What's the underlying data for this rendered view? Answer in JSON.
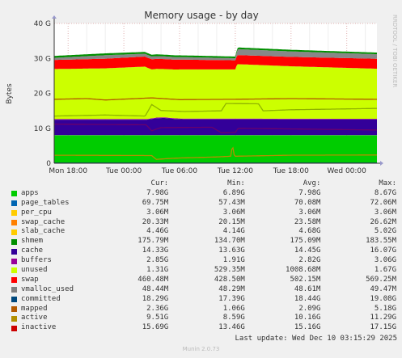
{
  "chart_data": {
    "type": "area",
    "title": "Memory usage - by day",
    "ylabel": "Bytes",
    "ylim": [
      0,
      40
    ],
    "yticks": [
      "0",
      "10 G",
      "20 G",
      "30 G",
      "40 G"
    ],
    "x_ticks": [
      "Mon 18:00",
      "Tue 00:00",
      "Tue 06:00",
      "Tue 12:00",
      "Tue 18:00",
      "Wed 00:00"
    ],
    "x_tick_hours": [
      0,
      6,
      12,
      18,
      24,
      30
    ],
    "x_range_hours": [
      -1.5,
      33.25
    ],
    "grid": true,
    "legend_position": "bottom",
    "stack_order": [
      "apps",
      "page_tables",
      "per_cpu",
      "swap_cache",
      "slab_cache",
      "shmem",
      "cache",
      "buffers",
      "unused",
      "swap"
    ],
    "line_series": [
      "vmalloc_used",
      "committed",
      "mapped",
      "active",
      "inactive"
    ],
    "series_profiles": {
      "apps": [
        [
          -1.5,
          7.98
        ],
        [
          33.25,
          7.98
        ]
      ],
      "page_tables": [
        [
          -1.5,
          0.07
        ],
        [
          33.25,
          0.07
        ]
      ],
      "per_cpu": [
        [
          -1.5,
          0.003
        ],
        [
          33.25,
          0.003
        ]
      ],
      "swap_cache": [
        [
          -1.5,
          0.02
        ],
        [
          33.25,
          0.02
        ]
      ],
      "slab_cache": [
        [
          -1.5,
          4.4
        ],
        [
          8.5,
          4.4
        ],
        [
          9.5,
          4.8
        ],
        [
          10.3,
          4.9
        ],
        [
          11.5,
          4.6
        ],
        [
          12.5,
          4.5
        ],
        [
          20.5,
          4.5
        ],
        [
          33.25,
          4.46
        ]
      ],
      "shmem": [
        [
          -1.5,
          0.18
        ],
        [
          33.25,
          0.18
        ]
      ],
      "cache": [
        [
          -1.5,
          14.3
        ],
        [
          4.0,
          14.5
        ],
        [
          8.3,
          15.0
        ],
        [
          9.0,
          14.0
        ],
        [
          10.3,
          13.8
        ],
        [
          12.5,
          14.1
        ],
        [
          18.0,
          14.1
        ],
        [
          18.2,
          15.6
        ],
        [
          24.0,
          15.0
        ],
        [
          33.25,
          14.33
        ]
      ],
      "buffers": [
        [
          -1.5,
          2.6
        ],
        [
          9.0,
          2.9
        ],
        [
          18.0,
          2.6
        ],
        [
          18.3,
          2.6
        ],
        [
          33.25,
          2.85
        ]
      ],
      "unused": [
        [
          -1.5,
          0.6
        ],
        [
          4.0,
          1.0
        ],
        [
          8.3,
          0.8
        ],
        [
          18.0,
          0.6
        ],
        [
          18.3,
          1.7
        ],
        [
          33.25,
          1.31
        ]
      ],
      "swap": [
        [
          -1.5,
          0.55
        ],
        [
          18.0,
          0.48
        ],
        [
          33.25,
          0.46
        ]
      ],
      "vmalloc_used": [
        [
          -1.5,
          0.048
        ],
        [
          33.25,
          0.048
        ]
      ],
      "committed": [
        [
          -1.5,
          18.3
        ],
        [
          2.0,
          18.5
        ],
        [
          4.0,
          18.1
        ],
        [
          9.0,
          18.7
        ],
        [
          12.0,
          18.2
        ],
        [
          18.0,
          18.3
        ],
        [
          24.0,
          18.5
        ],
        [
          33.25,
          18.29
        ]
      ],
      "mapped": [
        [
          -1.5,
          2.3
        ],
        [
          9.0,
          2.2
        ],
        [
          9.5,
          1.1
        ],
        [
          10.5,
          1.3
        ],
        [
          12.0,
          1.5
        ],
        [
          16.0,
          1.8
        ],
        [
          17.5,
          2.0
        ],
        [
          17.7,
          5.2
        ],
        [
          17.9,
          2.0
        ],
        [
          24.0,
          2.3
        ],
        [
          33.25,
          2.36
        ]
      ],
      "active": [
        [
          -1.5,
          11.2
        ],
        [
          8.4,
          11.0
        ],
        [
          9.0,
          9.3
        ],
        [
          10.0,
          10.2
        ],
        [
          15.5,
          10.3
        ],
        [
          16.5,
          8.7
        ],
        [
          18.0,
          8.8
        ],
        [
          18.3,
          10.0
        ],
        [
          33.25,
          9.51
        ]
      ],
      "inactive": [
        [
          -1.5,
          13.5
        ],
        [
          4.0,
          13.8
        ],
        [
          8.3,
          13.5
        ],
        [
          9.0,
          16.8
        ],
        [
          10.0,
          15.1
        ],
        [
          12.5,
          14.8
        ],
        [
          16.5,
          15.0
        ],
        [
          17.0,
          17.1
        ],
        [
          20.5,
          17.0
        ],
        [
          21.0,
          15.0
        ],
        [
          24.0,
          15.3
        ],
        [
          33.25,
          15.69
        ]
      ]
    }
  },
  "colors": {
    "apps": "#00cc00",
    "page_tables": "#0066b3",
    "per_cpu": "#ff8000",
    "swap_cache": "#ffcc00",
    "slab_cache": "#330099",
    "shmem": "#990099",
    "cache": "#ccff00",
    "buffers": "#ff0000",
    "unused": "#888888",
    "swap": "#008f00",
    "vmalloc_used": "#00487d",
    "committed": "#b35a00",
    "mapped": "#b38f00",
    "active": "#6b006b",
    "inactive": "#8fb300"
  },
  "legend": {
    "headers": [
      "Cur:",
      "Min:",
      "Avg:",
      "Max:"
    ],
    "rows": [
      {
        "name": "apps",
        "color": "#00cc00",
        "cur": "7.98G",
        "min": "6.89G",
        "avg": "7.98G",
        "max": "8.67G"
      },
      {
        "name": "page_tables",
        "color": "#0066b3",
        "cur": "69.75M",
        "min": "57.43M",
        "avg": "70.08M",
        "max": "72.06M"
      },
      {
        "name": "per_cpu",
        "color": "#ffcc00",
        "cur": "3.06M",
        "min": "3.06M",
        "avg": "3.06M",
        "max": "3.06M"
      },
      {
        "name": "swap_cache",
        "color": "#ff8000",
        "cur": "20.33M",
        "min": "20.15M",
        "avg": "23.58M",
        "max": "26.62M"
      },
      {
        "name": "slab_cache",
        "color": "#ffcc00",
        "cur": "4.46G",
        "min": "4.14G",
        "avg": "4.68G",
        "max": "5.02G"
      },
      {
        "name": "shmem",
        "color": "#008f00",
        "cur": "175.79M",
        "min": "134.70M",
        "avg": "175.09M",
        "max": "183.55M"
      },
      {
        "name": "cache",
        "color": "#330099",
        "cur": "14.33G",
        "min": "13.63G",
        "avg": "14.45G",
        "max": "16.07G"
      },
      {
        "name": "buffers",
        "color": "#990099",
        "cur": "2.85G",
        "min": "1.91G",
        "avg": "2.82G",
        "max": "3.06G"
      },
      {
        "name": "unused",
        "color": "#ccff00",
        "cur": "1.31G",
        "min": "529.35M",
        "avg": "1008.68M",
        "max": "1.67G"
      },
      {
        "name": "swap",
        "color": "#ff0000",
        "cur": "460.48M",
        "min": "428.50M",
        "avg": "502.15M",
        "max": "569.25M"
      },
      {
        "name": "vmalloc_used",
        "color": "#808080",
        "cur": "48.44M",
        "min": "48.29M",
        "avg": "48.61M",
        "max": "49.47M"
      },
      {
        "name": "committed",
        "color": "#00487d",
        "cur": "18.29G",
        "min": "17.39G",
        "avg": "18.44G",
        "max": "19.08G"
      },
      {
        "name": "mapped",
        "color": "#b35a00",
        "cur": "2.36G",
        "min": "1.06G",
        "avg": "2.09G",
        "max": "5.18G"
      },
      {
        "name": "active",
        "color": "#b38f00",
        "cur": "9.51G",
        "min": "8.59G",
        "avg": "10.16G",
        "max": "11.29G"
      },
      {
        "name": "inactive",
        "color": "#cc0000",
        "cur": "15.69G",
        "min": "13.46G",
        "avg": "15.16G",
        "max": "17.15G"
      }
    ]
  },
  "side_text": "RRDTOOL / TOBI OETIKER",
  "last_update": "Last update: Wed Dec 10 03:15:29 2025",
  "footer": "Munin 2.0.73"
}
